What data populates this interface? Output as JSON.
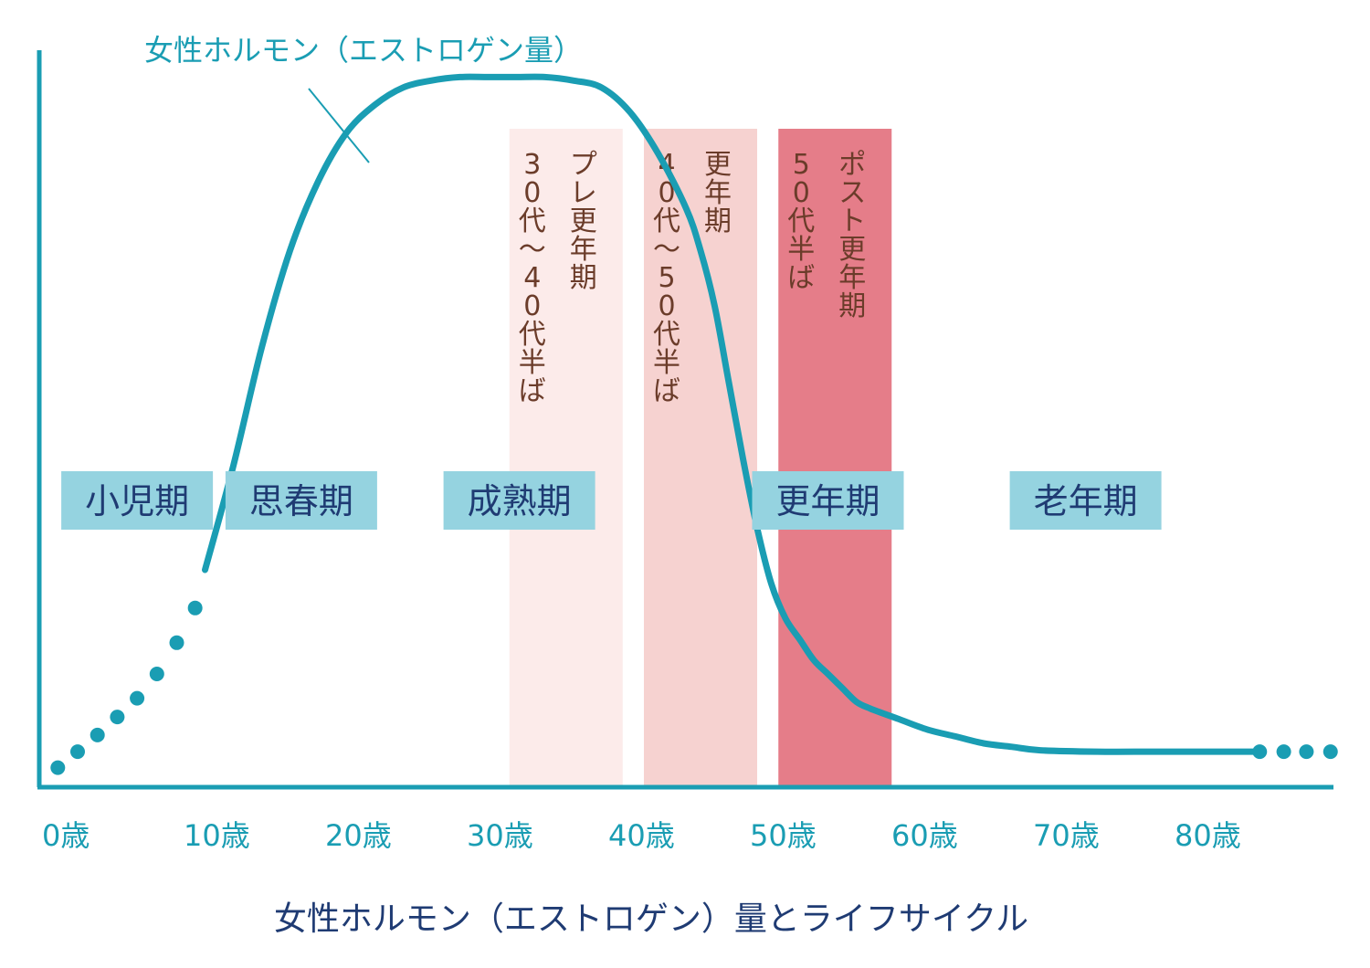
{
  "colors": {
    "curve": "#1a9db3",
    "axis": "#1a9db3",
    "tick_text": "#1a9db3",
    "stage_box": "#95d3e0",
    "stage_text": "#1f3b73",
    "title_text": "#1f3b73",
    "band_text": "#6b3c2a",
    "band_pre": "#fcebea",
    "band_meno": "#f6d2d0",
    "band_post": "#e57d89"
  },
  "chart_data": {
    "type": "line",
    "title": "女性ホルモン（エストロゲン）量とライフサイクル",
    "series_label": "女性ホルモン（エストロゲン量）",
    "x_ticks": [
      "0歳",
      "10歳",
      "20歳",
      "30歳",
      "40歳",
      "50歳",
      "60歳",
      "70歳",
      "80歳"
    ],
    "xlim": [
      0,
      92
    ],
    "ylim": [
      0,
      100
    ],
    "series": [
      {
        "name": "女性ホルモン（エストロゲン量）",
        "x": [
          11,
          13,
          15,
          17,
          19,
          21,
          23,
          25,
          27,
          29,
          31,
          33,
          35,
          37,
          39,
          41,
          43,
          45,
          46,
          47,
          48,
          49,
          50,
          51,
          52,
          53,
          54,
          55,
          56,
          57,
          58,
          60,
          62,
          64,
          66,
          68,
          70,
          74,
          78,
          82,
          85.5
        ],
        "y": [
          30,
          45,
          62,
          76,
          86,
          93,
          97,
          99.5,
          100.5,
          101,
          101,
          101,
          101,
          100.5,
          99.5,
          96,
          90,
          82,
          76,
          68,
          57,
          46,
          36,
          28,
          23,
          20,
          17,
          15,
          13,
          11,
          10,
          8.5,
          7,
          6,
          5,
          4.5,
          4,
          3.8,
          3.8,
          3.8,
          3.8
        ]
      }
    ],
    "dotted_lead_in": {
      "x": [
        0.6,
        2.0,
        3.4,
        4.8,
        6.2,
        7.6,
        9.0,
        10.3
      ],
      "y": [
        1.5,
        3.8,
        6.2,
        8.8,
        11.5,
        15.0,
        19.5,
        24.5
      ]
    },
    "dotted_tail": {
      "x": [
        85.5,
        87.2,
        88.8,
        90.5
      ],
      "y": [
        3.8,
        3.8,
        3.8,
        3.8
      ]
    },
    "bands": [
      {
        "id": "pre",
        "x_start": 32.5,
        "x_end": 40.5,
        "color_key": "band_pre",
        "columns": [
          [
            "プ",
            "レ",
            "更",
            "年",
            "期"
          ],
          [
            "3",
            "0",
            "代",
            "～",
            "4",
            "0",
            "代",
            "半",
            "ば"
          ]
        ]
      },
      {
        "id": "meno",
        "x_start": 42,
        "x_end": 50,
        "color_key": "band_meno",
        "columns": [
          [
            "更",
            "年",
            "期"
          ],
          [
            "4",
            "0",
            "代",
            "～",
            "5",
            "0",
            "代",
            "半",
            "ば"
          ]
        ]
      },
      {
        "id": "post",
        "x_start": 51.5,
        "x_end": 59.5,
        "color_key": "band_post",
        "columns": [
          [
            "ポ",
            "ス",
            "ト",
            "更",
            "年",
            "期"
          ],
          [
            "5",
            "0",
            "代",
            "半",
            "ば"
          ]
        ]
      }
    ],
    "stages": [
      {
        "label": "小児期",
        "x_center": 6.2
      },
      {
        "label": "思春期",
        "x_center": 17.8
      },
      {
        "label": "成熟期",
        "x_center": 33.2
      },
      {
        "label": "更年期",
        "x_center": 55.0
      },
      {
        "label": "老年期",
        "x_center": 73.2
      }
    ]
  }
}
